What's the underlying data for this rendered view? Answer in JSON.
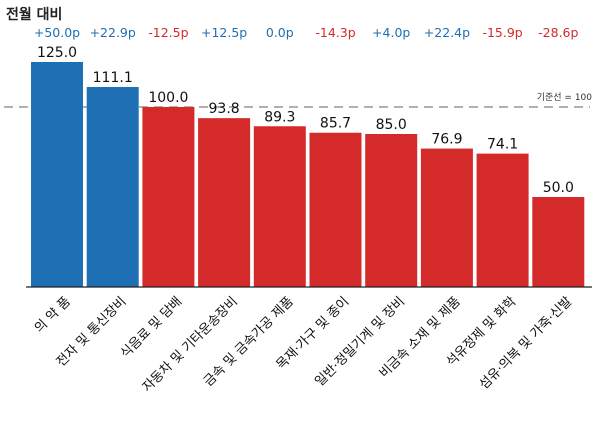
{
  "chart_data": {
    "type": "bar",
    "change_header": "전월 대비",
    "categories": [
      "의 약 품",
      "전자 및 통신장비",
      "식음료 및 담배",
      "자동차 및 기타운송장비",
      "금속 및 금속가공 제품",
      "목재·가구 및 종이",
      "일반·정밀기계 및 장비",
      "비금속 소재 및 제품",
      "석유정제 및 화학",
      "섬유·의복 및 가죽·신발"
    ],
    "values": [
      125.0,
      111.1,
      100.0,
      93.8,
      89.3,
      85.7,
      85.0,
      76.9,
      74.1,
      50.0
    ],
    "value_labels": [
      "125.0",
      "111.1",
      "100.0",
      "93.8",
      "89.3",
      "85.7",
      "85.0",
      "76.9",
      "74.1",
      "50.0"
    ],
    "changes": [
      "+50.0p",
      "+22.9p",
      "-12.5p",
      "+12.5p",
      "0.0p",
      "-14.3p",
      "+4.0p",
      "+22.4p",
      "-15.9p",
      "-28.6p"
    ],
    "reference_line": {
      "value": 100,
      "label": "기준선 = 100"
    },
    "ylim": [
      0,
      125
    ],
    "grid": false,
    "legend": "none",
    "colors": {
      "above_reference": "#1f6fb4",
      "below_reference": "#d42a2a",
      "change_positive": "#1f6fb4",
      "change_negative": "#d42a2a",
      "change_zero": "#1f6fb4",
      "reference_line": "#b0b0b0",
      "axis": "#222222"
    }
  }
}
